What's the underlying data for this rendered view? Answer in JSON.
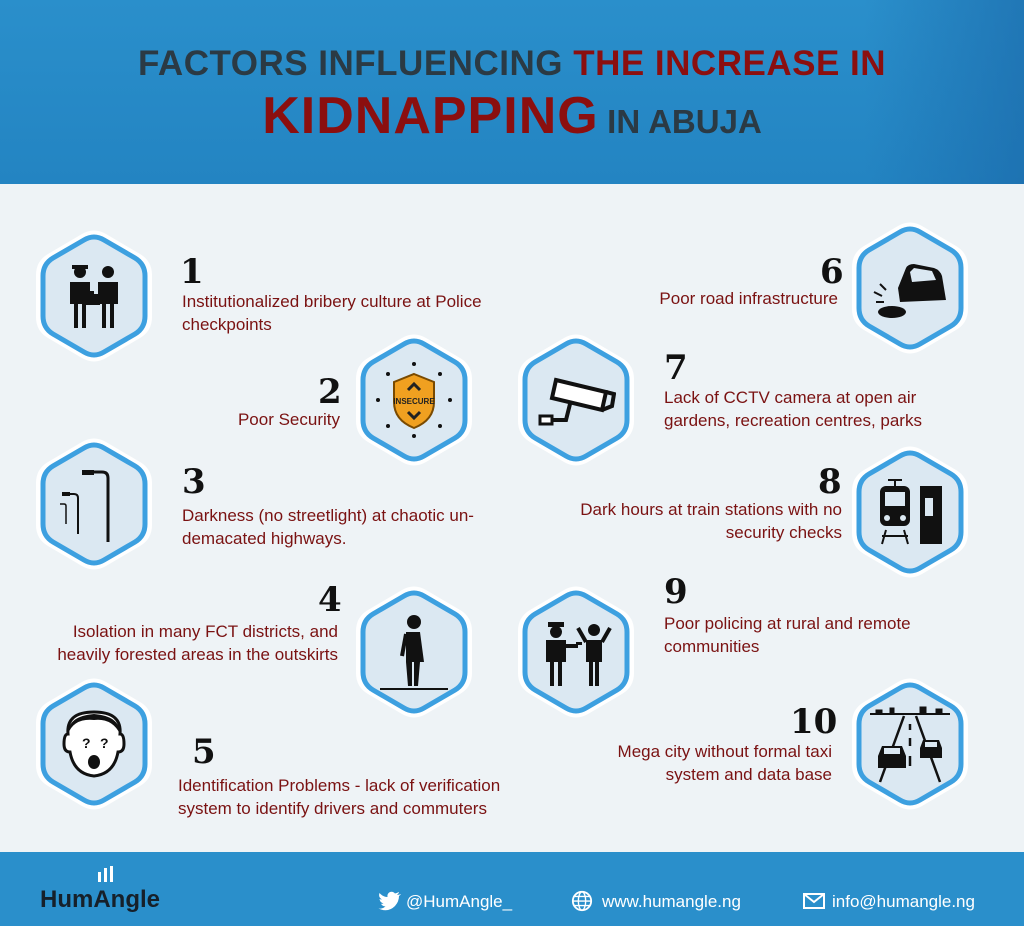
{
  "header": {
    "title_dark": "FACTORS INFLUENCING",
    "title_red": "THE INCREASE IN",
    "title_big": "KIDNAPPING",
    "title_small": "IN ABUJA"
  },
  "factors": [
    {
      "num": "1",
      "text": "Institutionalized bribery culture at Police checkpoints",
      "icon": "bribery-icon"
    },
    {
      "num": "2",
      "text": "Poor Security",
      "icon": "insecure-shield-icon"
    },
    {
      "num": "3",
      "text": "Darkness (no streetlight) at chaotic un-demacated highways.",
      "icon": "streetlight-icon"
    },
    {
      "num": "4",
      "text": "Isolation in many FCT districts, and heavily forested areas in the outskirts",
      "icon": "isolated-person-icon"
    },
    {
      "num": "5",
      "text": "Identification Problems - lack of verification system to identify drivers and commuters",
      "icon": "confused-face-icon"
    },
    {
      "num": "6",
      "text": "Poor road infrastructure",
      "icon": "car-pothole-icon"
    },
    {
      "num": "7",
      "text": "Lack of CCTV camera at open air gardens, recreation centres, parks",
      "icon": "cctv-camera-icon"
    },
    {
      "num": "8",
      "text": "Dark hours at train stations with no security checks",
      "icon": "train-station-icon"
    },
    {
      "num": "9",
      "text": "Poor policing at rural and remote communities",
      "icon": "police-gun-icon"
    },
    {
      "num": "10",
      "text": "Mega city without formal taxi system and data base",
      "icon": "city-road-cars-icon"
    }
  ],
  "insecure_label": "INSECURE",
  "footer": {
    "brand": "HumAngle",
    "twitter": "@HumAngle_",
    "website": "www.humangle.ng",
    "email": "info@humangle.ng"
  },
  "colors": {
    "header_blue": "#2a8fcb",
    "accent_red": "#8b0f0f",
    "hex_border": "#3da0e0",
    "hex_fill": "#dbe8f2",
    "background": "#eef3f6"
  }
}
